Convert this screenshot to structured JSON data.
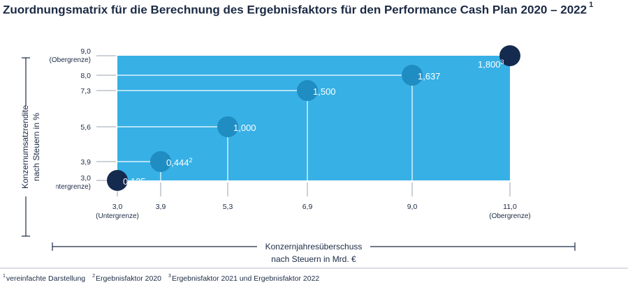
{
  "title": "Zuordnungsmatrix für die Berechnung des Ergebnisfaktors für den Performance Cash Plan 2020 – 2022",
  "title_sup": "1",
  "chart_data": {
    "type": "scatter",
    "title": "Zuordnungsmatrix für die Berechnung des Ergebnisfaktors für den Performance Cash Plan 2020 – 2022",
    "xlabel": [
      "Konzernjahresüberschuss",
      "nach Steuern in Mrd. €"
    ],
    "ylabel": [
      "Konzernumsatzrendite",
      "nach Steuern in %"
    ],
    "x_ticks": [
      {
        "value": 3.0,
        "label": "3,0",
        "sub": "(Untergrenze)"
      },
      {
        "value": 3.9,
        "label": "3,9",
        "sub": ""
      },
      {
        "value": 5.3,
        "label": "5,3",
        "sub": ""
      },
      {
        "value": 6.9,
        "label": "6,9",
        "sub": ""
      },
      {
        "value": 9.0,
        "label": "9,0",
        "sub": ""
      },
      {
        "value": 11.0,
        "label": "11,0",
        "sub": "(Obergrenze)"
      }
    ],
    "y_ticks": [
      {
        "value": 9.0,
        "label": "9,0",
        "sub": "(Obergrenze)"
      },
      {
        "value": 8.0,
        "label": "8,0",
        "sub": ""
      },
      {
        "value": 7.3,
        "label": "7,3",
        "sub": ""
      },
      {
        "value": 5.6,
        "label": "5,6",
        "sub": ""
      },
      {
        "value": 3.9,
        "label": "3,9",
        "sub": ""
      },
      {
        "value": 3.0,
        "label": "3,0",
        "sub": "(Untergrenze)"
      }
    ],
    "points": [
      {
        "x": 3.0,
        "y": 3.0,
        "label": "0,135",
        "sup": "",
        "style": "dark"
      },
      {
        "x": 3.9,
        "y": 3.9,
        "label": "0,444",
        "sup": "2",
        "style": "mid"
      },
      {
        "x": 5.3,
        "y": 5.6,
        "label": "1,000",
        "sup": "",
        "style": "mid"
      },
      {
        "x": 6.9,
        "y": 7.3,
        "label": "1,500",
        "sup": "",
        "style": "mid"
      },
      {
        "x": 9.0,
        "y": 8.0,
        "label": "1,637",
        "sup": "",
        "style": "mid"
      },
      {
        "x": 11.0,
        "y": 9.0,
        "label": "1,800",
        "sup": "3",
        "style": "dark"
      }
    ],
    "x_range": [
      3.0,
      11.0
    ],
    "y_range": [
      3.0,
      9.0
    ],
    "colors": {
      "area": "#37b0e6",
      "point_mid": "#1f8dc2",
      "point_dark": "#152a4f",
      "text": "#1b2a44",
      "guide": "#9aa3b0"
    }
  },
  "footnotes": [
    {
      "sup": "1",
      "text": "vereinfachte Darstellung"
    },
    {
      "sup": "2",
      "text": "Ergebnisfaktor 2020"
    },
    {
      "sup": "3",
      "text": "Ergebnisfaktor 2021 und Ergebnisfaktor 2022"
    }
  ]
}
